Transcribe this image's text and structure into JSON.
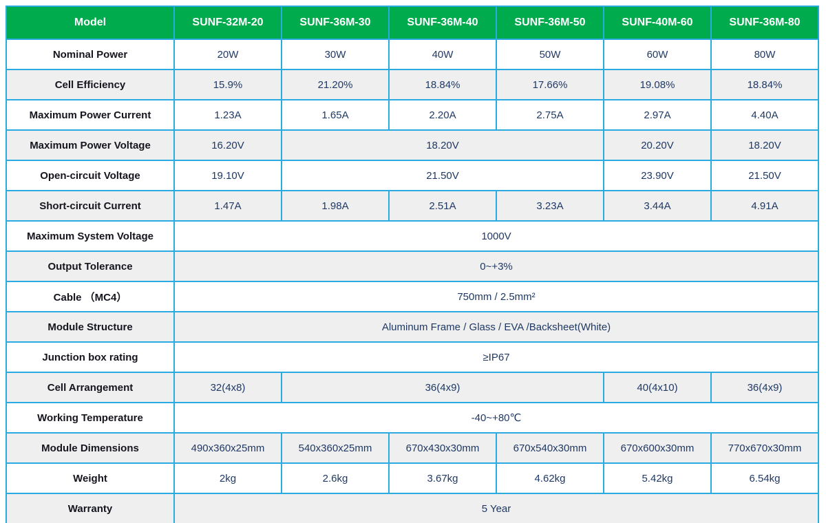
{
  "colors": {
    "header_green": "#00ab4e",
    "border_blue": "#29abe2",
    "stripe_gray": "#efefef",
    "header_text": "#ffffff",
    "label_text": "#15151f",
    "value_text": "#1f3864"
  },
  "table": {
    "header": {
      "model_label": "Model",
      "columns": [
        "SUNF-32M-20",
        "SUNF-36M-30",
        "SUNF-36M-40",
        "SUNF-36M-50",
        "SUNF-40M-60",
        "SUNF-36M-80"
      ]
    },
    "rows": [
      {
        "label": "Nominal Power",
        "cells": [
          {
            "text": "20W",
            "span": 1
          },
          {
            "text": "30W",
            "span": 1
          },
          {
            "text": "40W",
            "span": 1
          },
          {
            "text": "50W",
            "span": 1
          },
          {
            "text": "60W",
            "span": 1
          },
          {
            "text": "80W",
            "span": 1
          }
        ]
      },
      {
        "label": "Cell Efficiency",
        "cells": [
          {
            "text": "15.9%",
            "span": 1
          },
          {
            "text": "21.20%",
            "span": 1
          },
          {
            "text": "18.84%",
            "span": 1
          },
          {
            "text": "17.66%",
            "span": 1
          },
          {
            "text": "19.08%",
            "span": 1
          },
          {
            "text": "18.84%",
            "span": 1
          }
        ]
      },
      {
        "label": "Maximum Power  Current",
        "cells": [
          {
            "text": "1.23A",
            "span": 1
          },
          {
            "text": "1.65A",
            "span": 1
          },
          {
            "text": "2.20A",
            "span": 1
          },
          {
            "text": "2.75A",
            "span": 1
          },
          {
            "text": "2.97A",
            "span": 1
          },
          {
            "text": "4.40A",
            "span": 1
          }
        ]
      },
      {
        "label": "Maximum Power Voltage",
        "cells": [
          {
            "text": "16.20V",
            "span": 1
          },
          {
            "text": "18.20V",
            "span": 3
          },
          {
            "text": "20.20V",
            "span": 1
          },
          {
            "text": "18.20V",
            "span": 1
          }
        ]
      },
      {
        "label": "Open-circuit Voltage",
        "cells": [
          {
            "text": "19.10V",
            "span": 1
          },
          {
            "text": "21.50V",
            "span": 3
          },
          {
            "text": "23.90V",
            "span": 1
          },
          {
            "text": "21.50V",
            "span": 1
          }
        ]
      },
      {
        "label": "Short-circuit Current",
        "cells": [
          {
            "text": "1.47A",
            "span": 1
          },
          {
            "text": "1.98A",
            "span": 1
          },
          {
            "text": "2.51A",
            "span": 1
          },
          {
            "text": "3.23A",
            "span": 1
          },
          {
            "text": "3.44A",
            "span": 1
          },
          {
            "text": "4.91A",
            "span": 1
          }
        ]
      },
      {
        "label": "Maximum System Voltage",
        "cells": [
          {
            "text": "1000V",
            "span": 6
          }
        ]
      },
      {
        "label": "Output Tolerance",
        "cells": [
          {
            "text": "0~+3%",
            "span": 6
          }
        ]
      },
      {
        "label": "Cable （MC4）",
        "cells": [
          {
            "text": "750mm / 2.5mm²",
            "span": 6
          }
        ]
      },
      {
        "label": "Module Structure",
        "cells": [
          {
            "text": "Aluminum Frame / Glass / EVA /Backsheet(White)",
            "span": 6
          }
        ]
      },
      {
        "label": "Junction box rating",
        "cells": [
          {
            "text": "≥IP67",
            "span": 6
          }
        ]
      },
      {
        "label": "Cell Arrangement",
        "cells": [
          {
            "text": "32(4x8)",
            "span": 1
          },
          {
            "text": "36(4x9)",
            "span": 3
          },
          {
            "text": "40(4x10)",
            "span": 1
          },
          {
            "text": "36(4x9)",
            "span": 1
          }
        ]
      },
      {
        "label": "Working Temperature",
        "cells": [
          {
            "text": "-40~+80℃",
            "span": 6
          }
        ]
      },
      {
        "label": "Module Dimensions",
        "cells": [
          {
            "text": "490x360x25mm",
            "span": 1
          },
          {
            "text": "540x360x25mm",
            "span": 1
          },
          {
            "text": "670x430x30mm",
            "span": 1
          },
          {
            "text": "670x540x30mm",
            "span": 1
          },
          {
            "text": "670x600x30mm",
            "span": 1
          },
          {
            "text": "770x670x30mm",
            "span": 1
          }
        ]
      },
      {
        "label": "Weight",
        "cells": [
          {
            "text": "2kg",
            "span": 1
          },
          {
            "text": "2.6kg",
            "span": 1
          },
          {
            "text": "3.67kg",
            "span": 1
          },
          {
            "text": "4.62kg",
            "span": 1
          },
          {
            "text": "5.42kg",
            "span": 1
          },
          {
            "text": "6.54kg",
            "span": 1
          }
        ]
      },
      {
        "label": "Warranty",
        "cells": [
          {
            "text": "5 Year",
            "span": 6
          }
        ]
      }
    ]
  }
}
